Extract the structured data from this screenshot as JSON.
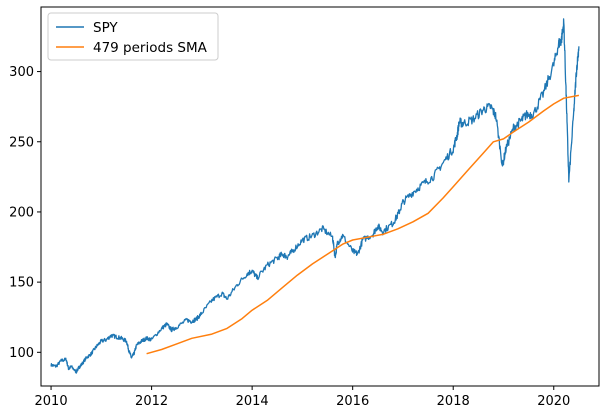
{
  "chart_data": {
    "type": "line",
    "title": "",
    "xlabel": "",
    "ylabel": "",
    "xlim": [
      2009.8,
      2020.9
    ],
    "ylim": [
      76,
      346
    ],
    "x_ticks": [
      2010,
      2012,
      2014,
      2016,
      2018,
      2020
    ],
    "x_tick_labels": [
      "2010",
      "2012",
      "2014",
      "2016",
      "2018",
      "2020"
    ],
    "y_ticks": [
      100,
      150,
      200,
      250,
      300
    ],
    "y_tick_labels": [
      "100",
      "150",
      "200",
      "250",
      "300"
    ],
    "grid": false,
    "legend": {
      "position": "top-left",
      "entries": [
        "SPY",
        "479 periods SMA"
      ]
    },
    "series": [
      {
        "name": "SPY",
        "color": "#1f77b4",
        "x": [
          2010.0,
          2010.1,
          2010.2,
          2010.3,
          2010.35,
          2010.4,
          2010.5,
          2010.55,
          2010.6,
          2010.7,
          2010.8,
          2010.9,
          2011.0,
          2011.1,
          2011.2,
          2011.3,
          2011.4,
          2011.5,
          2011.55,
          2011.6,
          2011.65,
          2011.7,
          2011.8,
          2011.9,
          2012.0,
          2012.2,
          2012.3,
          2012.4,
          2012.5,
          2012.7,
          2012.8,
          2012.9,
          2013.0,
          2013.2,
          2013.4,
          2013.5,
          2013.7,
          2013.9,
          2014.0,
          2014.1,
          2014.3,
          2014.5,
          2014.6,
          2014.7,
          2014.8,
          2015.0,
          2015.2,
          2015.4,
          2015.6,
          2015.65,
          2015.7,
          2015.8,
          2016.0,
          2016.1,
          2016.2,
          2016.4,
          2016.5,
          2016.6,
          2016.8,
          2016.9,
          2017.0,
          2017.2,
          2017.4,
          2017.6,
          2017.8,
          2018.0,
          2018.08,
          2018.12,
          2018.2,
          2018.4,
          2018.6,
          2018.75,
          2018.85,
          2018.98,
          2019.05,
          2019.2,
          2019.35,
          2019.45,
          2019.6,
          2019.8,
          2020.0,
          2020.1,
          2020.15,
          2020.2,
          2020.25,
          2020.3,
          2020.4,
          2020.45
        ],
        "y": [
          91,
          90,
          94,
          95,
          88,
          90,
          86,
          89,
          91,
          96,
          99,
          104,
          108,
          109,
          112,
          111,
          110,
          108,
          101,
          96,
          99,
          105,
          108,
          110,
          109,
          117,
          120,
          116,
          118,
          123,
          122,
          124,
          128,
          137,
          142,
          138,
          148,
          156,
          158,
          153,
          162,
          167,
          170,
          168,
          172,
          180,
          183,
          188,
          182,
          168,
          178,
          183,
          172,
          170,
          180,
          184,
          190,
          186,
          192,
          198,
          207,
          214,
          220,
          225,
          235,
          245,
          255,
          264,
          263,
          266,
          273,
          275,
          268,
          233,
          245,
          260,
          265,
          269,
          270,
          285,
          305,
          320,
          322,
          335,
          280,
          222,
          272,
          300
        ],
        "extra_x": [
          2020.5
        ],
        "extra_y": [
          318
        ]
      },
      {
        "name": "479 periods SMA",
        "color": "#ff7f0e",
        "x": [
          2011.9,
          2012.2,
          2012.5,
          2012.8,
          2013.2,
          2013.5,
          2013.8,
          2014.0,
          2014.3,
          2014.6,
          2014.9,
          2015.2,
          2015.5,
          2015.8,
          2016.0,
          2016.3,
          2016.6,
          2016.9,
          2017.2,
          2017.5,
          2017.8,
          2018.0,
          2018.3,
          2018.6,
          2018.8,
          2019.0,
          2019.2,
          2019.5,
          2019.8,
          2020.0,
          2020.2,
          2020.5
        ],
        "y": [
          99,
          102,
          106,
          110,
          113,
          117,
          124,
          130,
          137,
          146,
          155,
          163,
          170,
          177,
          180,
          182,
          184,
          188,
          193,
          199,
          210,
          218,
          230,
          242,
          250,
          252,
          257,
          264,
          272,
          277,
          281,
          283
        ]
      }
    ]
  }
}
